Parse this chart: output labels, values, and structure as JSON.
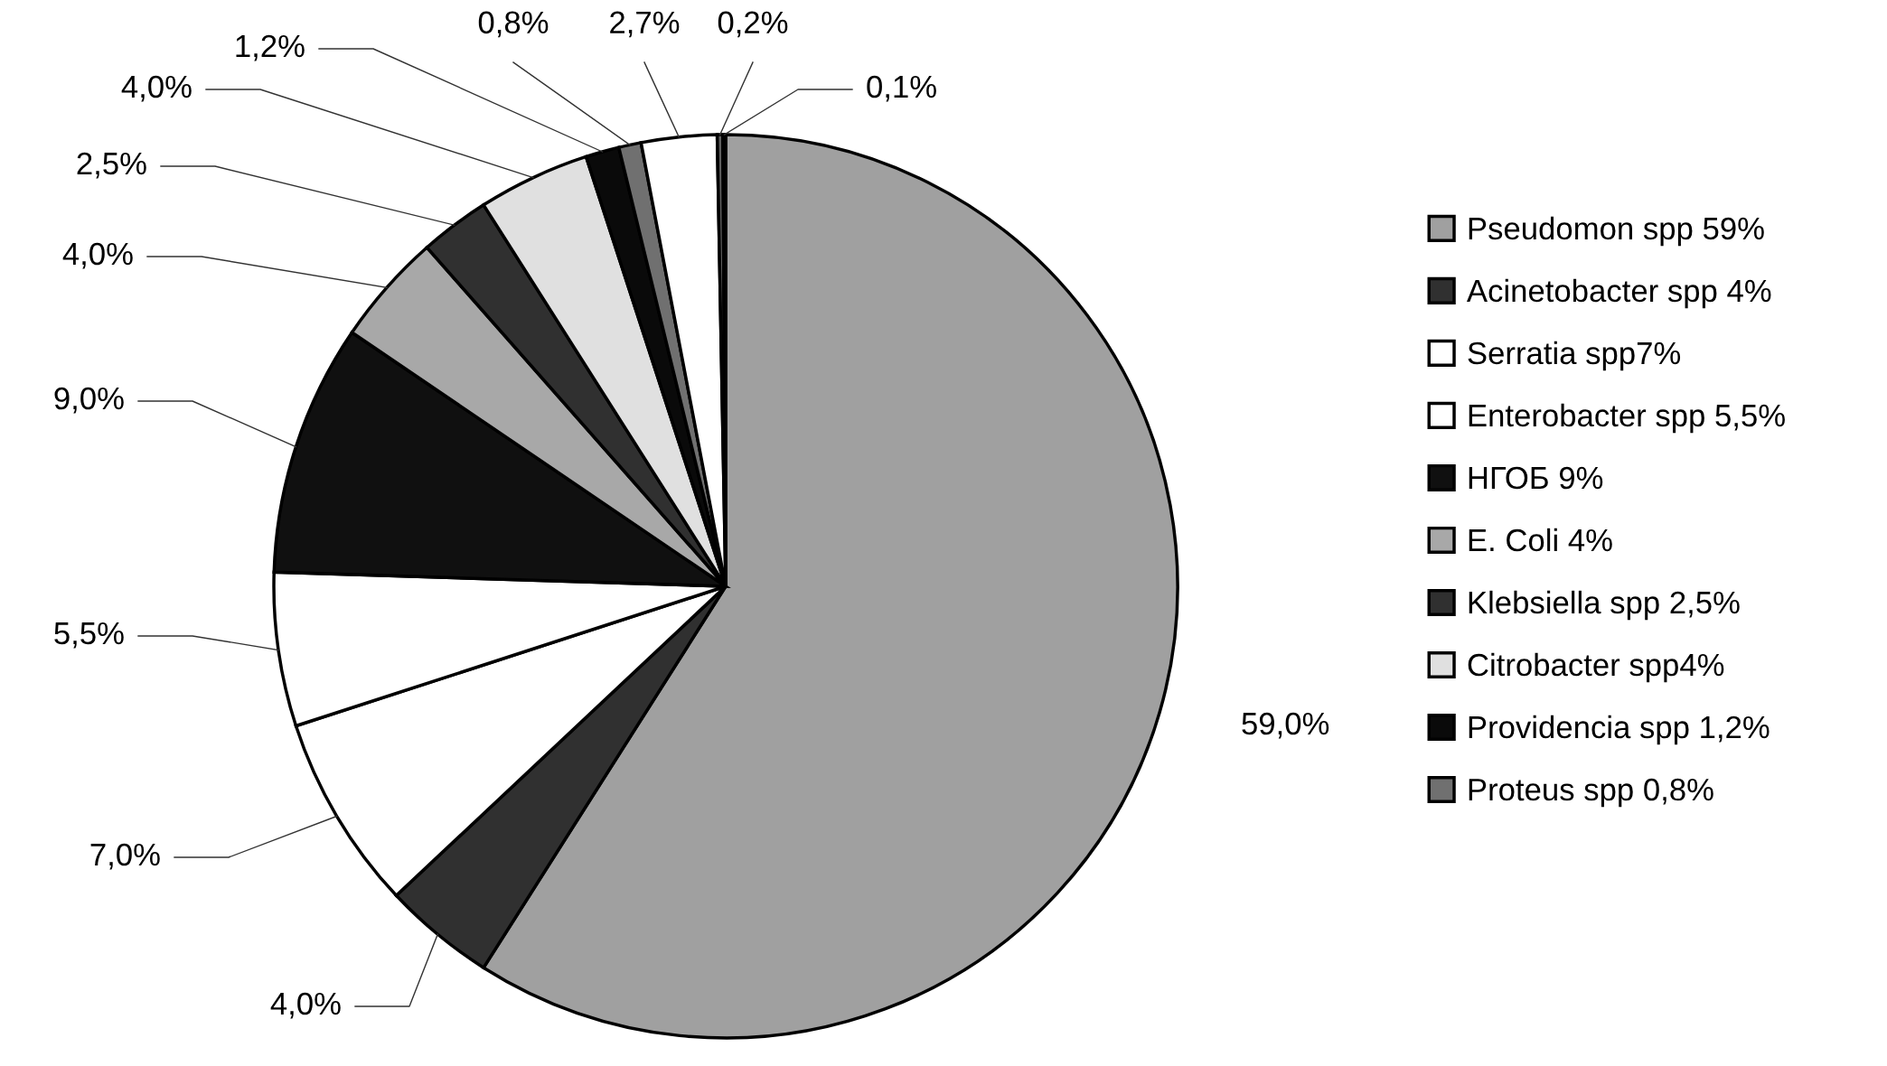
{
  "chart_data": {
    "type": "pie",
    "categories": [
      "Pseudomon spp 59%",
      "Acinetobacter spp 4%",
      "Serratia spp7%",
      "Enterobacter spp 5,5%",
      "НГОБ 9%",
      "E. Coli 4%",
      "Klebsiella spp 2,5%",
      "Citrobacter spp4%",
      "Providencia spp 1,2%",
      "Proteus spp 0,8%",
      null,
      null,
      null
    ],
    "values": [
      59,
      4,
      7,
      5.5,
      9,
      4,
      2.5,
      4,
      1.2,
      0.8,
      2.7,
      0.2,
      0.1
    ],
    "colors": [
      "#a0a0a0",
      "#303030",
      "#ffffff",
      "#ffffff",
      "#101010",
      "#a8a8a8",
      "#303030",
      "#e0e0e0",
      "#0a0a0a",
      "#707070",
      "#ffffff",
      "#606060",
      "#ffffff"
    ],
    "value_labels": [
      "59,0%",
      "4,0%",
      "7,0%",
      "5,5%",
      "9,0%",
      "4,0%",
      "2,5%",
      "4,0%",
      "1,2%",
      "0,8%",
      "2,7%",
      "0,2%",
      "0,1%"
    ],
    "legend": "right"
  }
}
